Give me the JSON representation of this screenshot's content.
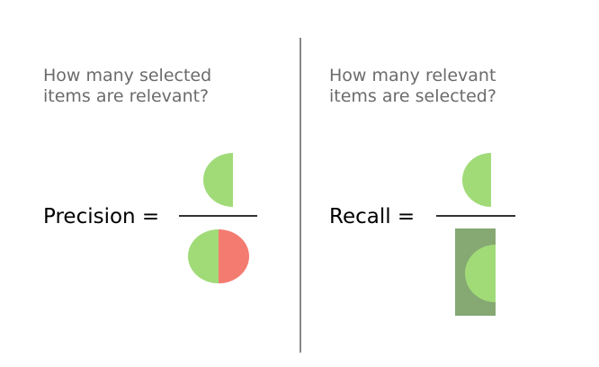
{
  "left_panel": {
    "question": "How many selected\nitems are relevant?",
    "formula_label": "Precision ="
  },
  "right_panel": {
    "question": "How many relevant\nitems are selected?",
    "formula_label": "Recall ="
  },
  "colors": {
    "relevant_selected_green": "#a0db78",
    "irrelevant_selected_red": "#f47b70",
    "relevant_items_dark_green": "#86a873",
    "question_text": "#6b6b6b",
    "divider": "#888888"
  }
}
